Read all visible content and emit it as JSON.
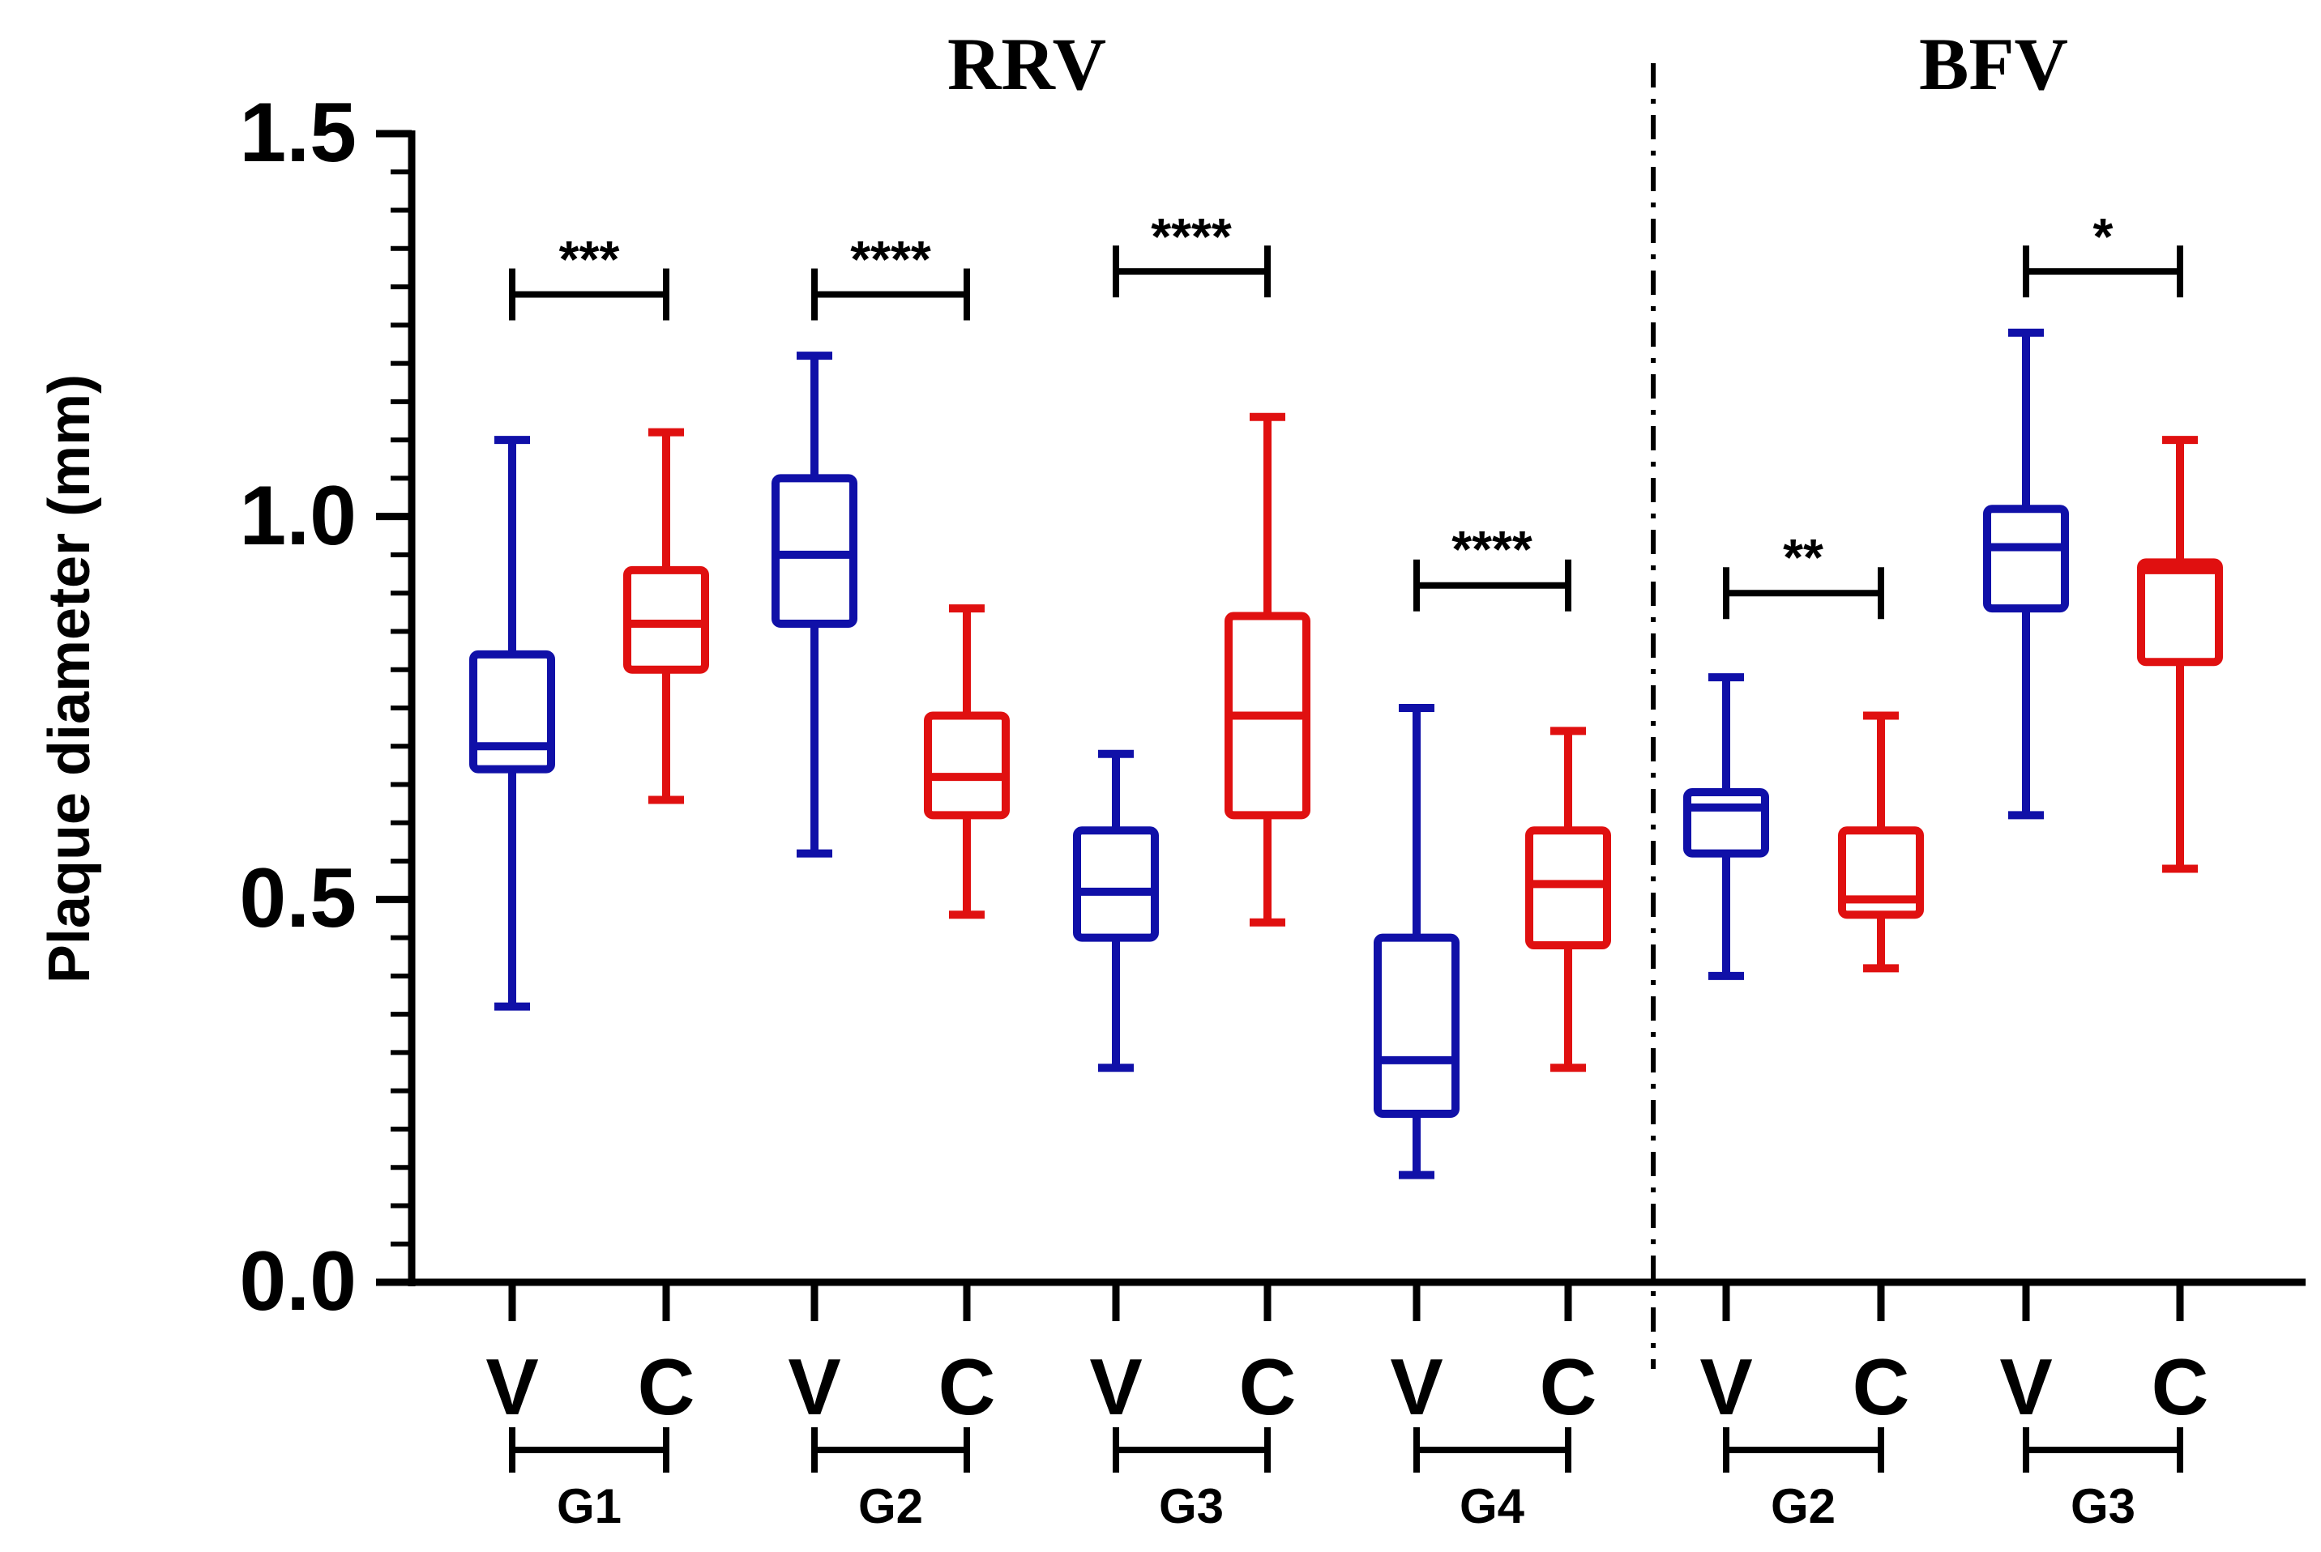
{
  "chart_data": {
    "type": "boxplot",
    "ylabel": "Plaque diameter (mm)",
    "ylim": [
      0,
      1.5
    ],
    "yticks": [
      "0.0",
      "0.5",
      "1.0",
      "1.5"
    ],
    "colors": {
      "V": "#1010a8",
      "C": "#e01010",
      "axis": "#000000"
    },
    "sections": [
      {
        "title": "RRV",
        "groups": [
          "G1",
          "G2",
          "G3",
          "G4"
        ]
      },
      {
        "title": "BFV",
        "groups": [
          "G2",
          "G3"
        ]
      }
    ],
    "boxes": [
      {
        "section": "RRV",
        "group": "G1",
        "category": "V",
        "min": 0.36,
        "q1": 0.67,
        "median": 0.7,
        "q3": 0.82,
        "max": 1.1
      },
      {
        "section": "RRV",
        "group": "G1",
        "category": "C",
        "min": 0.63,
        "q1": 0.8,
        "median": 0.86,
        "q3": 0.93,
        "max": 1.11
      },
      {
        "section": "RRV",
        "group": "G2",
        "category": "V",
        "min": 0.56,
        "q1": 0.86,
        "median": 0.95,
        "q3": 1.05,
        "max": 1.21
      },
      {
        "section": "RRV",
        "group": "G2",
        "category": "C",
        "min": 0.48,
        "q1": 0.61,
        "median": 0.66,
        "q3": 0.74,
        "max": 0.88
      },
      {
        "section": "RRV",
        "group": "G3",
        "category": "V",
        "min": 0.28,
        "q1": 0.45,
        "median": 0.51,
        "q3": 0.59,
        "max": 0.69
      },
      {
        "section": "RRV",
        "group": "G3",
        "category": "C",
        "min": 0.47,
        "q1": 0.61,
        "median": 0.74,
        "q3": 0.87,
        "max": 1.13
      },
      {
        "section": "RRV",
        "group": "G4",
        "category": "V",
        "min": 0.14,
        "q1": 0.22,
        "median": 0.29,
        "q3": 0.45,
        "max": 0.75
      },
      {
        "section": "RRV",
        "group": "G4",
        "category": "C",
        "min": 0.28,
        "q1": 0.44,
        "median": 0.52,
        "q3": 0.59,
        "max": 0.72
      },
      {
        "section": "BFV",
        "group": "G2",
        "category": "V",
        "min": 0.4,
        "q1": 0.56,
        "median": 0.62,
        "q3": 0.64,
        "max": 0.79
      },
      {
        "section": "BFV",
        "group": "G2",
        "category": "C",
        "min": 0.41,
        "q1": 0.48,
        "median": 0.5,
        "q3": 0.59,
        "max": 0.74
      },
      {
        "section": "BFV",
        "group": "G3",
        "category": "V",
        "min": 0.61,
        "q1": 0.88,
        "median": 0.96,
        "q3": 1.01,
        "max": 1.24
      },
      {
        "section": "BFV",
        "group": "G3",
        "category": "C",
        "min": 0.54,
        "q1": 0.81,
        "median": 0.93,
        "q3": 0.94,
        "max": 1.1
      }
    ],
    "significance": [
      {
        "section": "RRV",
        "group": "G1",
        "label": "***",
        "y": 1.29
      },
      {
        "section": "RRV",
        "group": "G2",
        "label": "****",
        "y": 1.29
      },
      {
        "section": "RRV",
        "group": "G3",
        "label": "****",
        "y": 1.32
      },
      {
        "section": "RRV",
        "group": "G4",
        "label": "****",
        "y": 0.91
      },
      {
        "section": "BFV",
        "group": "G2",
        "label": "**",
        "y": 0.9
      },
      {
        "section": "BFV",
        "group": "G3",
        "label": "*",
        "y": 1.32
      }
    ]
  }
}
